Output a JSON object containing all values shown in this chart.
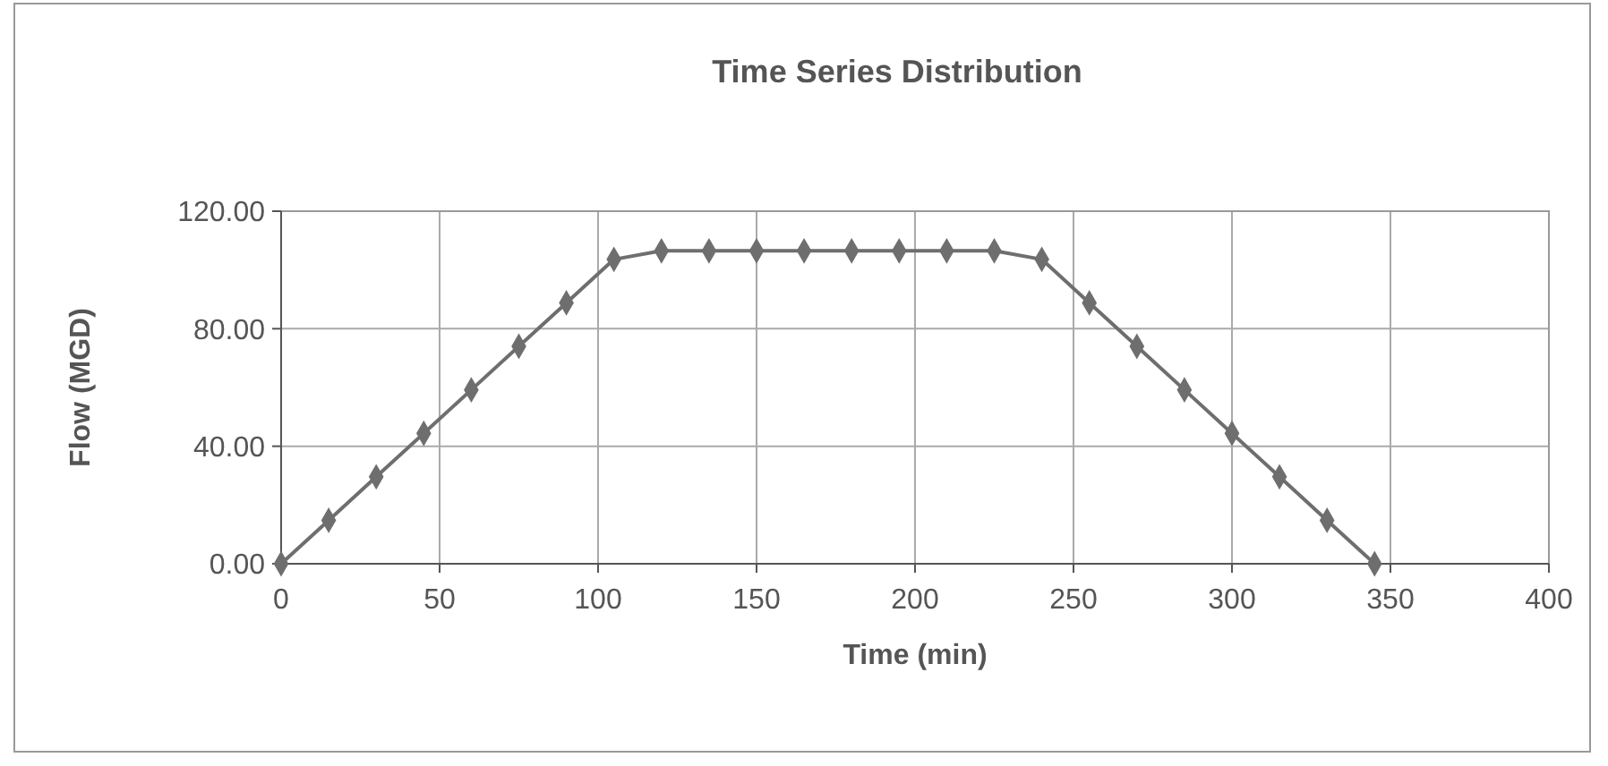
{
  "chart_data": {
    "type": "line",
    "title": "Time Series Distribution",
    "xlabel": "Time (min)",
    "ylabel": "Flow (MGD)",
    "x": [
      0,
      15,
      30,
      45,
      60,
      75,
      90,
      105,
      120,
      135,
      150,
      165,
      180,
      195,
      210,
      225,
      240,
      255,
      270,
      285,
      300,
      315,
      330,
      345
    ],
    "series": [
      {
        "color": "#6e6e6e",
        "values": [
          0,
          14.8,
          29.6,
          44.4,
          59.2,
          74,
          88.8,
          103.6,
          106.5,
          106.5,
          106.5,
          106.5,
          106.5,
          106.5,
          106.5,
          106.5,
          103.6,
          88.8,
          74,
          59.2,
          44.4,
          29.6,
          14.8,
          0
        ]
      }
    ],
    "xlim": [
      0,
      400
    ],
    "xticks": [
      0,
      50,
      100,
      150,
      200,
      250,
      300,
      350,
      400
    ],
    "ylim": [
      0,
      120
    ],
    "yticks": [
      {
        "value": 0,
        "label": "0.00"
      },
      {
        "value": 40,
        "label": "40.00"
      },
      {
        "value": 80,
        "label": "80.00"
      },
      {
        "value": 120,
        "label": "120.00"
      }
    ],
    "grid": true,
    "marker": "diamond",
    "line_style": "solid"
  }
}
